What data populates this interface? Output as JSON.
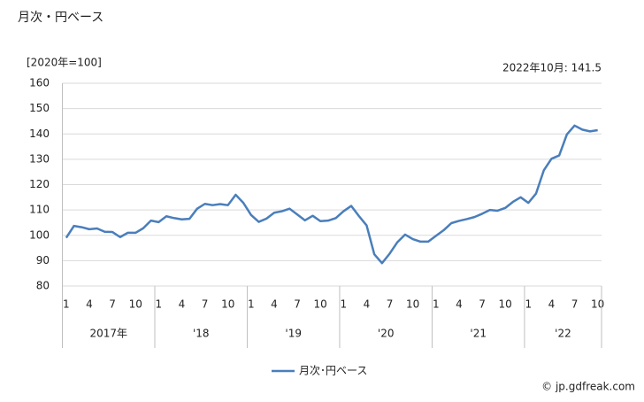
{
  "chart_data": {
    "type": "line",
    "title": "月次・円ベース",
    "y_unit_label": "[2020年=100]",
    "annotation": "2022年10月: 141.5",
    "copyright": "© jp.gdfreak.com",
    "categories": [
      "1",
      null,
      null,
      "4",
      null,
      null,
      "7",
      null,
      null,
      "10",
      null,
      null,
      "1",
      null,
      null,
      "4",
      null,
      null,
      "7",
      null,
      null,
      "10",
      null,
      null,
      "1",
      null,
      null,
      "4",
      null,
      null,
      "7",
      null,
      null,
      "10",
      null,
      null,
      "1",
      null,
      null,
      "4",
      null,
      null,
      "7",
      null,
      null,
      "10",
      null,
      null,
      "1",
      null,
      null,
      "4",
      null,
      null,
      "7",
      null,
      null,
      "10",
      null,
      null,
      "1",
      null,
      null,
      "4",
      null,
      null,
      "7",
      null,
      null,
      "10"
    ],
    "year_groups": [
      "2017年",
      "'18",
      "'19",
      "'20",
      "'21",
      "'22"
    ],
    "series": [
      {
        "name": "月次･円ベース",
        "color": "#4a7ebb",
        "values": [
          99.0,
          103.7,
          103.2,
          102.4,
          102.7,
          101.4,
          101.3,
          99.3,
          101.0,
          101.0,
          102.8,
          105.8,
          105.2,
          107.5,
          106.8,
          106.3,
          106.5,
          110.5,
          112.4,
          111.9,
          112.3,
          111.9,
          116.0,
          112.8,
          108.0,
          105.3,
          106.6,
          108.9,
          109.5,
          110.5,
          108.2,
          105.9,
          107.7,
          105.6,
          105.8,
          106.8,
          109.5,
          111.6,
          107.6,
          103.9,
          92.5,
          89.0,
          92.8,
          97.3,
          100.3,
          98.5,
          97.5,
          97.5,
          99.8,
          102.0,
          104.8,
          105.7,
          106.4,
          107.2,
          108.5,
          110.0,
          109.7,
          110.8,
          113.2,
          115.0,
          112.8,
          116.5,
          125.6,
          130.2,
          131.5,
          139.8,
          143.3,
          141.7,
          141.0,
          141.5
        ]
      }
    ],
    "ylim": [
      80,
      160
    ],
    "yticks": [
      80,
      90,
      100,
      110,
      120,
      130,
      140,
      150,
      160
    ],
    "grid": true
  }
}
